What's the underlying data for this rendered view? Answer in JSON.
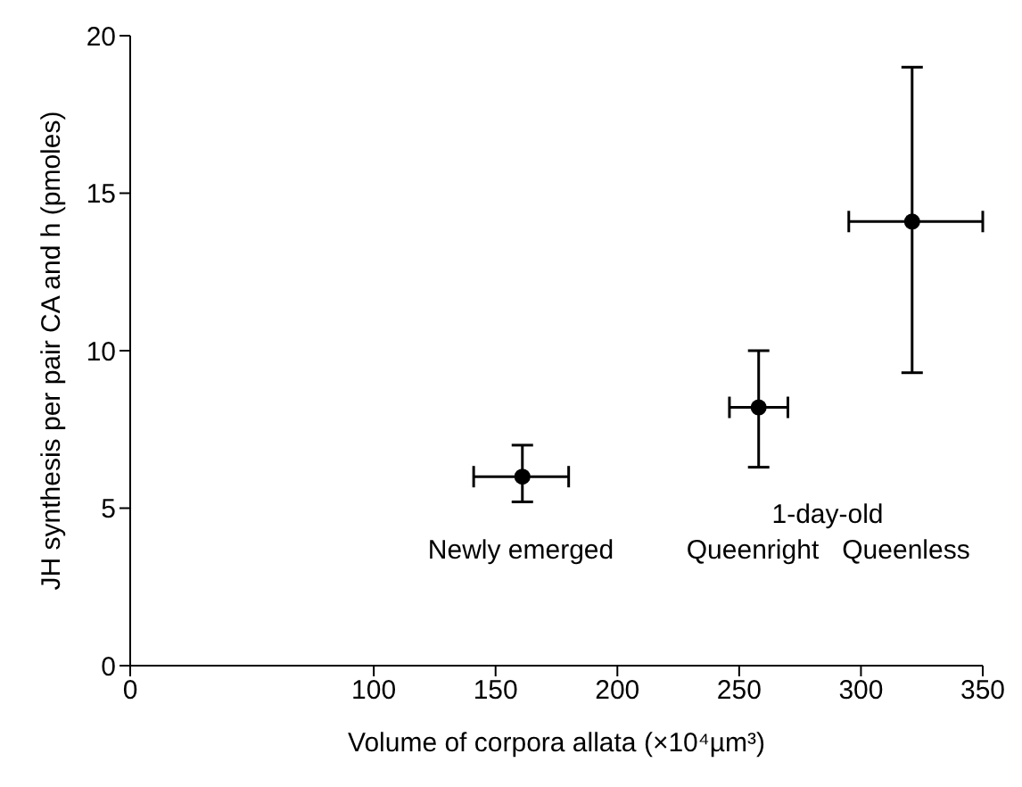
{
  "chart_data": {
    "type": "scatter",
    "xlabel": "Volume of corpora allata (×10⁴µm³)",
    "ylabel": "JH synthesis per pair CA and h (pmoles)",
    "x": [
      161,
      258,
      321
    ],
    "values": [
      6.0,
      8.2,
      14.1
    ],
    "errors": [
      [
        5.2,
        7.0
      ],
      [
        6.3,
        10.0
      ],
      [
        9.3,
        19.0
      ]
    ],
    "xerrors": [
      [
        141,
        180
      ],
      [
        246,
        270
      ],
      [
        295,
        350
      ]
    ],
    "color": "#000000",
    "marker": "circle",
    "grid": false,
    "legend": false,
    "xlim": [
      0,
      350
    ],
    "xticks": [
      0,
      100,
      150,
      200,
      250,
      300,
      350
    ],
    "ylim": [
      0,
      20
    ],
    "yticks": [
      0,
      5,
      10,
      15,
      20
    ],
    "annotations": [
      "Newly emerged",
      "Queenright",
      "1-day-old",
      "Queenless"
    ]
  }
}
